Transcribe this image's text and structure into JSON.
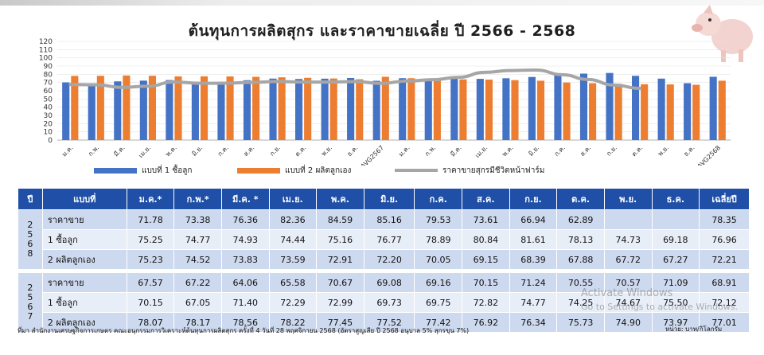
{
  "title": "ต้นทุนการผลิตสุกร และราคาขายเฉลี่ย ปี 2566 - 2568",
  "chart_data": {
    "type": "bar",
    "categories": [
      "ม.ค.",
      "ก.พ.",
      "มี.ค.",
      "เม.ย.",
      "พ.ค.",
      "มิ.ย.",
      "ก.ค.",
      "ส.ค.",
      "ก.ย.",
      "ต.ค.",
      "พ.ย.",
      "ธ.ค.",
      "AVG2567",
      "ม.ค.",
      "ก.พ.",
      "มี.ค.",
      "เม.ย.",
      "พ.ค.",
      "มิ.ย.",
      "ก.ค.",
      "ส.ค.",
      "ก.ย.",
      "ต.ค.",
      "พ.ย.",
      "ธ.ค.",
      "AVG2568"
    ],
    "ylim": [
      0,
      120
    ],
    "yticks": [
      0,
      10,
      20,
      30,
      40,
      50,
      60,
      70,
      80,
      90,
      100,
      110,
      120
    ],
    "series": [
      {
        "name": "แบบที่ 1 ซื้อลูก",
        "type": "bar",
        "color": "#4472c4",
        "values": [
          70.15,
          67.05,
          71.4,
          72.29,
          72.99,
          69.73,
          69.75,
          72.82,
          74.77,
          74.25,
          74.67,
          75.5,
          72.12,
          75.25,
          74.77,
          74.93,
          74.44,
          75.16,
          76.77,
          78.89,
          80.84,
          81.61,
          78.13,
          74.73,
          69.18,
          76.96
        ]
      },
      {
        "name": "แบบที่ 2 ผลิตลูกเอง",
        "type": "bar",
        "color": "#ed7d31",
        "values": [
          78.07,
          78.17,
          78.56,
          78.22,
          77.45,
          77.52,
          77.42,
          76.92,
          76.34,
          75.73,
          74.9,
          73.97,
          77.01,
          75.23,
          74.52,
          73.83,
          73.59,
          72.91,
          72.2,
          70.05,
          69.15,
          68.39,
          67.88,
          67.72,
          67.27,
          72.21
        ]
      },
      {
        "name": "ราคาขายสุกรมีชีวิตหน้าฟาร์ม",
        "type": "line",
        "color": "#a6a6a6",
        "values": [
          67.57,
          67.22,
          64.06,
          65.58,
          70.67,
          69.08,
          69.16,
          70.15,
          71.24,
          70.55,
          70.57,
          71.09,
          68.91,
          71.78,
          73.38,
          76.36,
          82.36,
          84.59,
          85.16,
          79.53,
          73.61,
          66.94,
          62.89,
          null,
          null,
          null
        ]
      }
    ]
  },
  "table": {
    "headers": [
      "ปี",
      "แบบที่",
      "ม.ค.*",
      "ก.พ.*",
      "มี.ค. *",
      "เม.ย.",
      "พ.ค.",
      "มิ.ย.",
      "ก.ค.",
      "ส.ค.",
      "ก.ย.",
      "ต.ค.",
      "พ.ย.",
      "ธ.ค.",
      "เฉลี่ยปี"
    ],
    "groups": [
      {
        "year": [
          "2",
          "5",
          "6",
          "8"
        ],
        "rows": [
          {
            "label": "ราคาขาย",
            "values": [
              "71.78",
              "73.38",
              "76.36",
              "82.36",
              "84.59",
              "85.16",
              "79.53",
              "73.61",
              "66.94",
              "62.89",
              "",
              "",
              "78.35"
            ]
          },
          {
            "label": "1 ซื้อลูก",
            "values": [
              "75.25",
              "74.77",
              "74.93",
              "74.44",
              "75.16",
              "76.77",
              "78.89",
              "80.84",
              "81.61",
              "78.13",
              "74.73",
              "69.18",
              "76.96"
            ]
          },
          {
            "label": "2 ผลิตลูกเอง",
            "values": [
              "75.23",
              "74.52",
              "73.83",
              "73.59",
              "72.91",
              "72.20",
              "70.05",
              "69.15",
              "68.39",
              "67.88",
              "67.72",
              "67.27",
              "72.21"
            ]
          }
        ]
      },
      {
        "year": [
          "2",
          "5",
          "6",
          "7"
        ],
        "rows": [
          {
            "label": "ราคาขาย",
            "values": [
              "67.57",
              "67.22",
              "64.06",
              "65.58",
              "70.67",
              "69.08",
              "69.16",
              "70.15",
              "71.24",
              "70.55",
              "70.57",
              "71.09",
              "68.91"
            ]
          },
          {
            "label": "1 ซื้อลูก",
            "values": [
              "70.15",
              "67.05",
              "71.40",
              "72.29",
              "72.99",
              "69.73",
              "69.75",
              "72.82",
              "74.77",
              "74.25",
              "74.67",
              "75.50",
              "72.12"
            ]
          },
          {
            "label": "2 ผลิตลูกเอง",
            "values": [
              "78.07",
              "78.17",
              "78.56",
              "78.22",
              "77.45",
              "77.52",
              "77.42",
              "76.92",
              "76.34",
              "75.73",
              "74.90",
              "73.97",
              "77.01"
            ]
          }
        ]
      }
    ]
  },
  "footnote": "ที่มา สำนักงานเศรษฐกิจการเกษตร คณะอนุกรรมการวิเคราะห์ต้นทุนการผลิตสุกร ครั้งที่ 4 วันที่ 28 พฤศจิกายน 2568 (อัตราสูญเสีย ปี 2568 อนุบาล 5% สุกรขุน 7%)",
  "unit": "หน่วย: บาท/กิโลกรัม",
  "watermark": {
    "line1": "Activate Windows",
    "line2": "Go to Settings to activate Windows."
  }
}
